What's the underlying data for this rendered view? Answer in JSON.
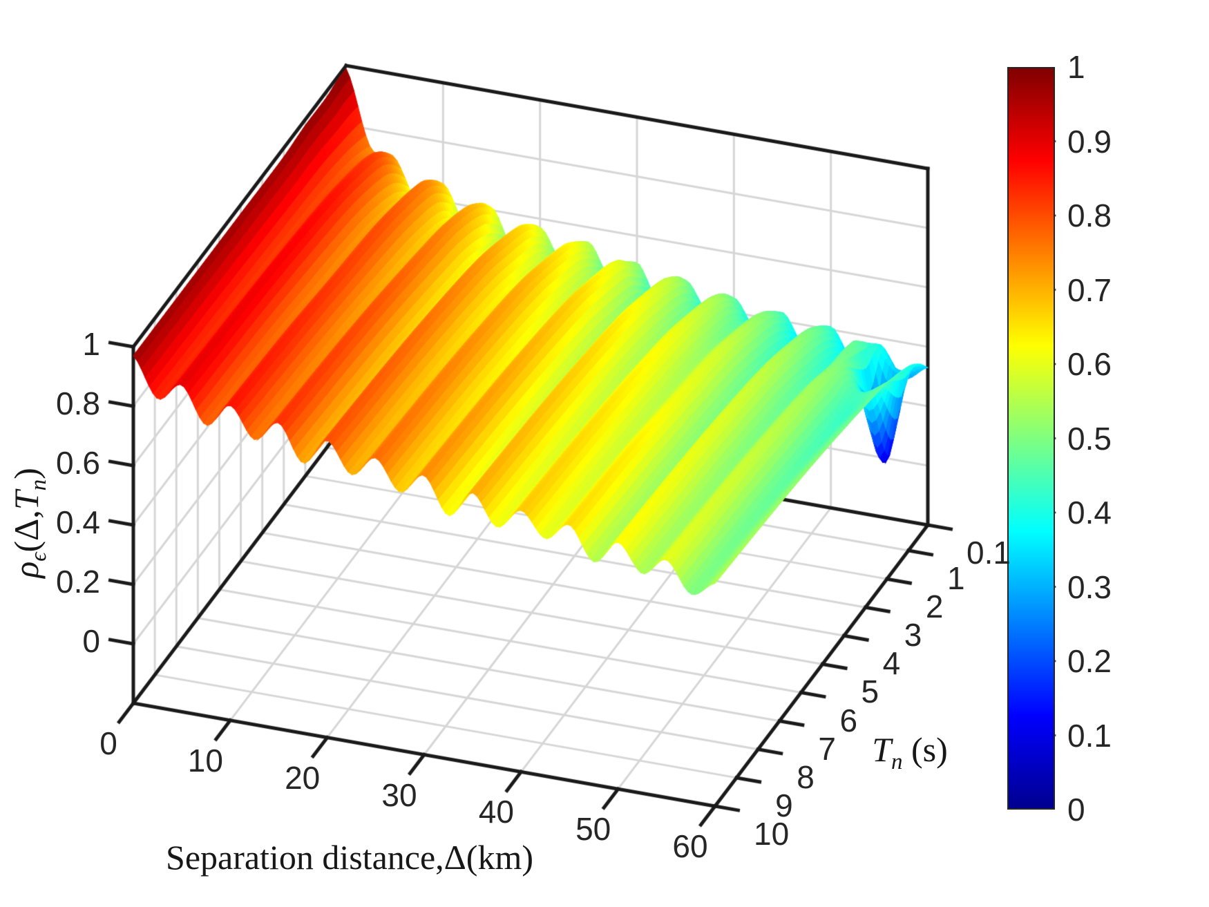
{
  "figure": {
    "background": "#ffffff",
    "axis_color": "#1a1a1a",
    "tick_text_color": "#262626",
    "grid_color": "#d6d6d6"
  },
  "labels": {
    "xlabel": "Separation distance,Δ(km)",
    "ylabel_symbol": "T",
    "ylabel_sub": "n",
    "ylabel_unit": " (s)",
    "zlabel_symbol": "ρ",
    "zlabel_sub": "ϵ",
    "zlabel_mid": "(Δ,",
    "zlabel_t": "T",
    "zlabel_tsub": "n",
    "zlabel_close": ")",
    "x_tick_labels": [
      "0",
      "10",
      "20",
      "30",
      "40",
      "50",
      "60"
    ],
    "y_tick_labels": [
      "0.1",
      "1",
      "2",
      "3",
      "4",
      "5",
      "6",
      "7",
      "8",
      "9",
      "10"
    ],
    "z_tick_labels": [
      "0",
      "0.2",
      "0.4",
      "0.6",
      "0.8",
      "1"
    ],
    "colorbar_tick_labels": [
      "0",
      "0.1",
      "0.2",
      "0.3",
      "0.4",
      "0.5",
      "0.6",
      "0.7",
      "0.8",
      "0.9",
      "1"
    ]
  },
  "chart_data": {
    "type": "surface",
    "title": "",
    "xlabel": "Separation distance,Δ(km)",
    "ylabel": "Tn (s)",
    "zlabel": "rho_epsilon(Delta,Tn)",
    "xlim": [
      0,
      60
    ],
    "ylim": [
      0.1,
      10
    ],
    "zlim": [
      -0.2,
      1
    ],
    "x_ticks": [
      0,
      10,
      20,
      30,
      40,
      50,
      60
    ],
    "y_ticks": [
      0.1,
      1,
      2,
      3,
      4,
      5,
      6,
      7,
      8,
      9,
      10
    ],
    "z_ticks": [
      0,
      0.2,
      0.4,
      0.6,
      0.8,
      1
    ],
    "grid": true,
    "colormap": "jet",
    "colormap_stops": [
      [
        0.0,
        0,
        0,
        143
      ],
      [
        0.125,
        0,
        0,
        255
      ],
      [
        0.375,
        0,
        255,
        255
      ],
      [
        0.625,
        255,
        255,
        0
      ],
      [
        0.875,
        255,
        0,
        0
      ],
      [
        1.0,
        128,
        0,
        0
      ]
    ],
    "colorbar": {
      "min": 0,
      "max": 1,
      "tick_step": 0.1,
      "position": "right"
    },
    "x": [
      0,
      2.5,
      5,
      7.5,
      10,
      12.5,
      15,
      17.5,
      20,
      22.5,
      25,
      27.5,
      30,
      32.5,
      35,
      37.5,
      40,
      42.5,
      45,
      47.5,
      50,
      52.5,
      55,
      57.5,
      60
    ],
    "y": [
      0.1,
      0.5,
      1,
      2,
      3,
      5,
      7,
      10
    ],
    "z_rows_by": "y",
    "z": [
      [
        0.99,
        0.74,
        0.72,
        0.58,
        0.66,
        0.53,
        0.61,
        0.47,
        0.57,
        0.46,
        0.55,
        0.43,
        0.51,
        0.38,
        0.48,
        0.38,
        0.45,
        0.35,
        0.43,
        0.32,
        0.41,
        0.3,
        0.38,
        0.28,
        0.33
      ],
      [
        0.99,
        0.76,
        0.77,
        0.63,
        0.71,
        0.58,
        0.66,
        0.52,
        0.62,
        0.51,
        0.59,
        0.48,
        0.55,
        0.43,
        0.53,
        0.43,
        0.5,
        0.41,
        0.47,
        0.37,
        0.45,
        0.36,
        0.42,
        0.33,
        0.38
      ],
      [
        0.98,
        0.78,
        0.81,
        0.67,
        0.75,
        0.63,
        0.7,
        0.57,
        0.66,
        0.56,
        0.63,
        0.53,
        0.6,
        0.48,
        0.57,
        0.47,
        0.54,
        0.46,
        0.51,
        0.41,
        0.49,
        0.4,
        0.46,
        0.08,
        0.42
      ],
      [
        0.98,
        0.8,
        0.84,
        0.71,
        0.78,
        0.67,
        0.74,
        0.62,
        0.7,
        0.6,
        0.67,
        0.57,
        0.64,
        0.52,
        0.61,
        0.51,
        0.58,
        0.5,
        0.55,
        0.45,
        0.53,
        0.44,
        0.5,
        0.41,
        0.46
      ],
      [
        0.97,
        0.81,
        0.86,
        0.73,
        0.8,
        0.69,
        0.76,
        0.64,
        0.73,
        0.63,
        0.7,
        0.6,
        0.67,
        0.55,
        0.64,
        0.54,
        0.61,
        0.53,
        0.58,
        0.48,
        0.56,
        0.47,
        0.53,
        0.43,
        0.48
      ],
      [
        0.97,
        0.82,
        0.88,
        0.75,
        0.82,
        0.72,
        0.79,
        0.67,
        0.76,
        0.66,
        0.73,
        0.63,
        0.7,
        0.58,
        0.67,
        0.57,
        0.64,
        0.56,
        0.61,
        0.51,
        0.59,
        0.5,
        0.56,
        0.46,
        0.51
      ],
      [
        0.97,
        0.83,
        0.89,
        0.77,
        0.84,
        0.74,
        0.81,
        0.69,
        0.78,
        0.68,
        0.75,
        0.65,
        0.72,
        0.6,
        0.69,
        0.59,
        0.66,
        0.58,
        0.64,
        0.53,
        0.61,
        0.52,
        0.58,
        0.48,
        0.53
      ],
      [
        0.97,
        0.84,
        0.9,
        0.78,
        0.86,
        0.76,
        0.83,
        0.71,
        0.8,
        0.7,
        0.77,
        0.67,
        0.74,
        0.62,
        0.71,
        0.61,
        0.68,
        0.6,
        0.66,
        0.55,
        0.63,
        0.54,
        0.6,
        0.5,
        0.55
      ]
    ]
  }
}
